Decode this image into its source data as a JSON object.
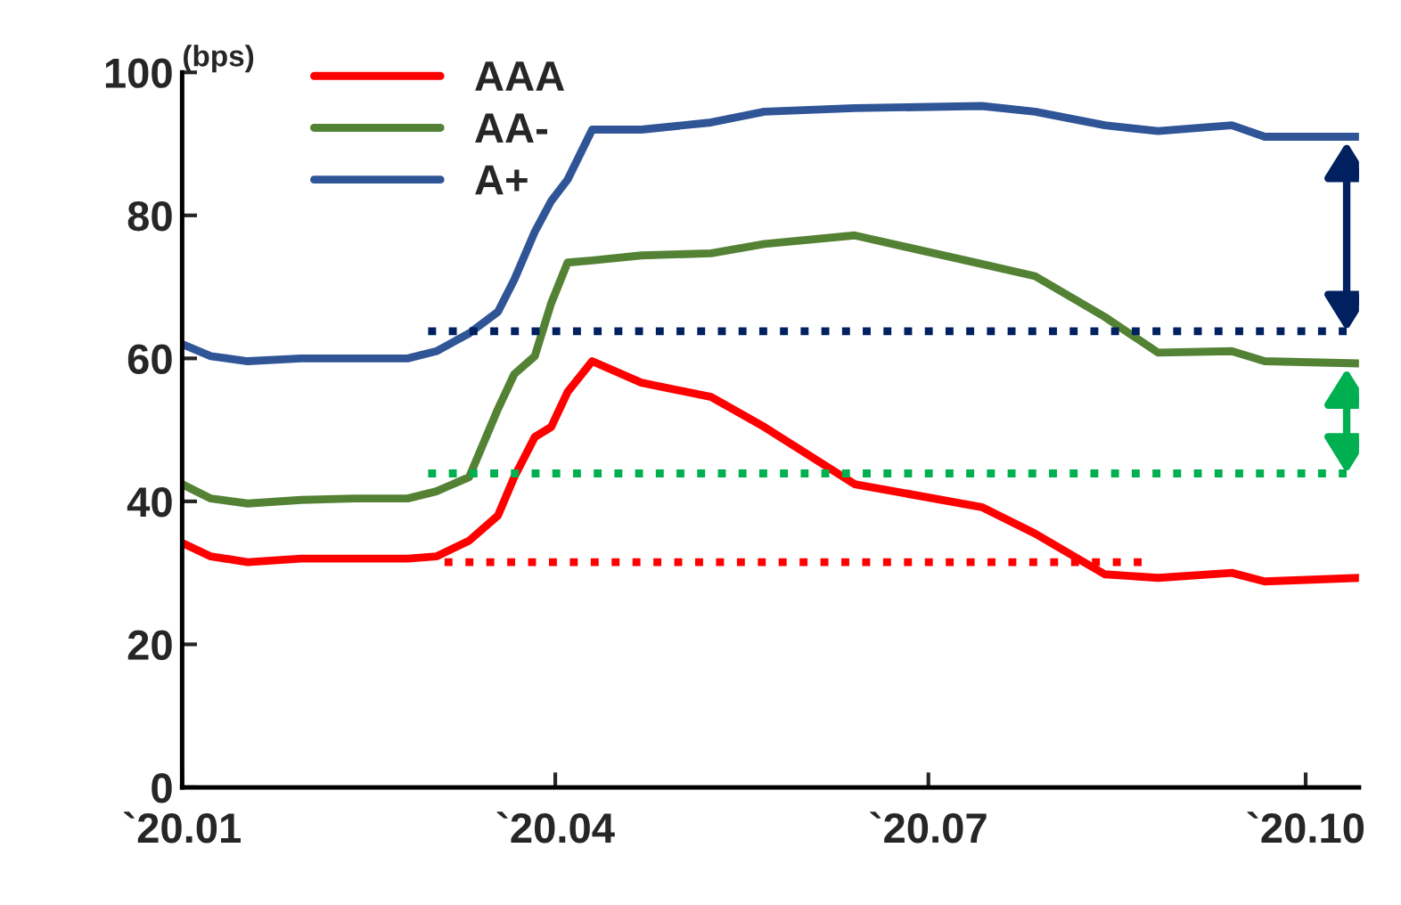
{
  "chart_data": {
    "type": "line",
    "ylabel": "(bps)",
    "x": [
      "2020-01-01",
      "2020-01-08",
      "2020-01-17",
      "2020-01-30",
      "2020-02-12",
      "2020-02-25",
      "2020-03-03",
      "2020-03-11",
      "2020-03-18",
      "2020-03-22",
      "2020-03-27",
      "2020-03-31",
      "2020-04-04",
      "2020-04-10",
      "2020-04-22",
      "2020-05-09",
      "2020-05-22",
      "2020-06-13",
      "2020-07-14",
      "2020-07-27",
      "2020-08-13",
      "2020-08-26",
      "2020-09-13",
      "2020-09-21",
      "2020-10-14"
    ],
    "series": [
      {
        "name": "AAA",
        "color": "#ff0000",
        "values": [
          34.2,
          32.3,
          31.5,
          32,
          32,
          32,
          32.3,
          34.5,
          38,
          43.4,
          49,
          50.4,
          55.3,
          59.6,
          56.6,
          54.6,
          50.4,
          42.4,
          39.2,
          35.5,
          29.8,
          29.3,
          30,
          28.8,
          29.3
        ]
      },
      {
        "name": "AA-",
        "color": "#548235",
        "values": [
          42.4,
          40.4,
          39.7,
          40.2,
          40.4,
          40.4,
          41.4,
          43.4,
          52.9,
          57.8,
          60.3,
          67.7,
          73.4,
          73.7,
          74.4,
          74.7,
          76,
          77.2,
          73.2,
          71.5,
          65.8,
          60.8,
          61,
          59.6,
          59.3
        ]
      },
      {
        "name": "A+",
        "color": "#2f5597",
        "values": [
          62,
          60.3,
          59.6,
          60,
          60,
          60,
          61,
          63.5,
          66.5,
          71,
          77.7,
          82,
          85,
          92,
          92,
          93,
          94.5,
          95,
          95.3,
          94.5,
          92.6,
          91.8,
          92.6,
          91,
          91
        ]
      },
      {
        "color": "#002060",
        "line_style": "dotted",
        "x": [
          "2020-03-01",
          "2020-10-11"
        ],
        "values": [
          63.8,
          63.8
        ]
      },
      {
        "color": "#00b050",
        "line_style": "dotted",
        "x": [
          "2020-03-01",
          "2020-10-11"
        ],
        "values": [
          43.9,
          43.9
        ]
      },
      {
        "color": "#ff0000",
        "line_style": "dotted",
        "x": [
          "2020-03-05",
          "2020-08-22"
        ],
        "values": [
          31.5,
          31.5
        ]
      }
    ],
    "xlim": [
      "2020-01-01",
      "2020-10-14"
    ],
    "xticks": [
      {
        "value": "2020-01-01",
        "label": "`20.01"
      },
      {
        "value": "2020-04-01",
        "label": "`20.04"
      },
      {
        "value": "2020-07-01",
        "label": "`20.07"
      },
      {
        "value": "2020-10-01",
        "label": "`20.10"
      }
    ],
    "ylim": [
      0,
      100
    ],
    "yticks": [
      0,
      20,
      40,
      60,
      80,
      100
    ],
    "grid": false,
    "legend": "top left"
  }
}
